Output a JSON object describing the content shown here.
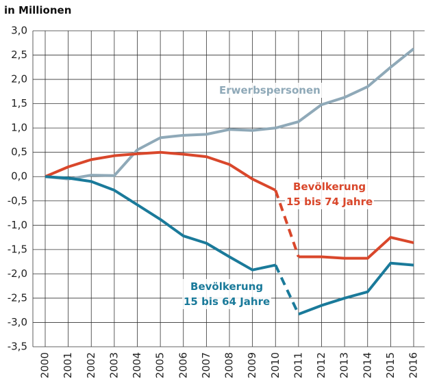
{
  "chart_data": {
    "type": "line",
    "title": "in Millionen",
    "categories": [
      "2000",
      "2001",
      "2002",
      "2003",
      "2004",
      "2005",
      "2006",
      "2007",
      "2008",
      "2009",
      "2010",
      "2011",
      "2012",
      "2013",
      "2014",
      "2015",
      "2016"
    ],
    "series": [
      {
        "name": "Erwerbspersonen",
        "color": "#8fa9b8",
        "values": [
          0,
          -0.05,
          0.03,
          0.02,
          0.55,
          0.8,
          0.85,
          0.87,
          0.97,
          0.95,
          1.0,
          1.13,
          1.48,
          1.63,
          1.85,
          2.25,
          2.63
        ]
      },
      {
        "name": "Bevölkerung\n15 bis 74 Jahre",
        "color": "#d9472b",
        "dashed_segment": 10,
        "values": [
          0,
          0.2,
          0.35,
          0.43,
          0.47,
          0.5,
          0.46,
          0.41,
          0.25,
          -0.05,
          -0.28,
          -1.65,
          -1.65,
          -1.68,
          -1.68,
          -1.25,
          -1.36
        ]
      },
      {
        "name": "Bevölkerung\n15 bis 64 Jahre",
        "color": "#1a7a9a",
        "dashed_segment": 10,
        "values": [
          0,
          -0.03,
          -0.1,
          -0.28,
          -0.58,
          -0.88,
          -1.22,
          -1.37,
          -1.65,
          -1.92,
          -1.82,
          -2.83,
          -2.65,
          -2.5,
          -2.37,
          -1.78,
          -1.82
        ]
      }
    ],
    "ylim": [
      -3.5,
      3.0
    ],
    "yticks": [
      {
        "value": -3.5,
        "label": "-3,5"
      },
      {
        "value": -3.0,
        "label": "-3,0"
      },
      {
        "value": -2.5,
        "label": "-2,5"
      },
      {
        "value": -2.0,
        "label": "-2,0"
      },
      {
        "value": -1.5,
        "label": "-1,5"
      },
      {
        "value": -1.0,
        "label": "-1,0"
      },
      {
        "value": -0.5,
        "label": "-0,5"
      },
      {
        "value": 0,
        "label": "0,0"
      },
      {
        "value": 0.5,
        "label": "0,5"
      },
      {
        "value": 1.0,
        "label": "1,0"
      },
      {
        "value": 1.5,
        "label": "1,5"
      },
      {
        "value": 2.0,
        "label": "2,0"
      },
      {
        "value": 2.5,
        "label": "2,5"
      },
      {
        "value": 3.0,
        "label": "3,0"
      }
    ],
    "grid": true
  }
}
